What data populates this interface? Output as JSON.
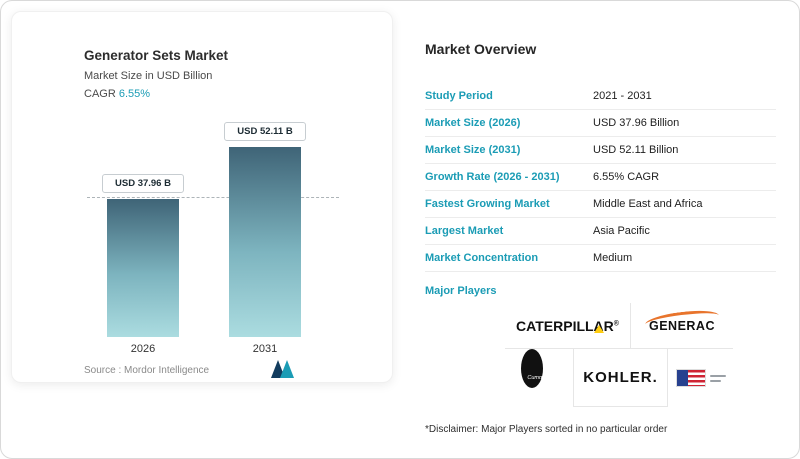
{
  "left_card": {
    "title": "Generator Sets Market",
    "subtitle": "Market Size in USD Billion",
    "cagr_label": "CAGR",
    "cagr_value": "6.55%",
    "source_label": "Source :",
    "source_value": "Mordor Intelligence"
  },
  "chart_data": {
    "type": "bar",
    "title": "Generator Sets Market",
    "ylabel": "Market Size in USD Billion",
    "categories": [
      "2026",
      "2031"
    ],
    "values": [
      37.96,
      52.11
    ],
    "value_labels": [
      "USD 37.96 B",
      "USD 52.11 B"
    ],
    "ylim": [
      0,
      57
    ],
    "grid": false,
    "legend": "none",
    "reference_line": {
      "style": "dashed",
      "value": 37.96
    },
    "bar_gradient": [
      "#3f6477",
      "#abdce0"
    ]
  },
  "overview": {
    "title": "Market Overview",
    "rows": [
      {
        "label": "Study Period",
        "value": "2021 - 2031"
      },
      {
        "label": "Market Size (2026)",
        "value": "USD 37.96 Billion"
      },
      {
        "label": "Market Size (2031)",
        "value": "USD 52.11 Billion"
      },
      {
        "label": "Growth Rate (2026 - 2031)",
        "value": "6.55% CAGR"
      },
      {
        "label": "Fastest Growing Market",
        "value": "Middle East and Africa"
      },
      {
        "label": "Largest Market",
        "value": "Asia Pacific"
      },
      {
        "label": "Market Concentration",
        "value": "Medium"
      }
    ],
    "major_players_label": "Major Players",
    "disclaimer": "*Disclaimer: Major Players sorted in no particular order"
  },
  "players": {
    "caterpillar": "CATERPILLAR",
    "caterpillar_reg": "®",
    "generac": "GENERAC",
    "cummins": "Cummins",
    "kohler": "KOHLER."
  },
  "colors": {
    "accent_teal": "#1b9cb5",
    "bar_top": "#3f6477",
    "bar_bottom": "#abdce0",
    "caterpillar_yellow": "#ffcd11",
    "generac_orange": "#e8742c",
    "flag_blue": "#27418f",
    "flag_red": "#cf2434"
  }
}
